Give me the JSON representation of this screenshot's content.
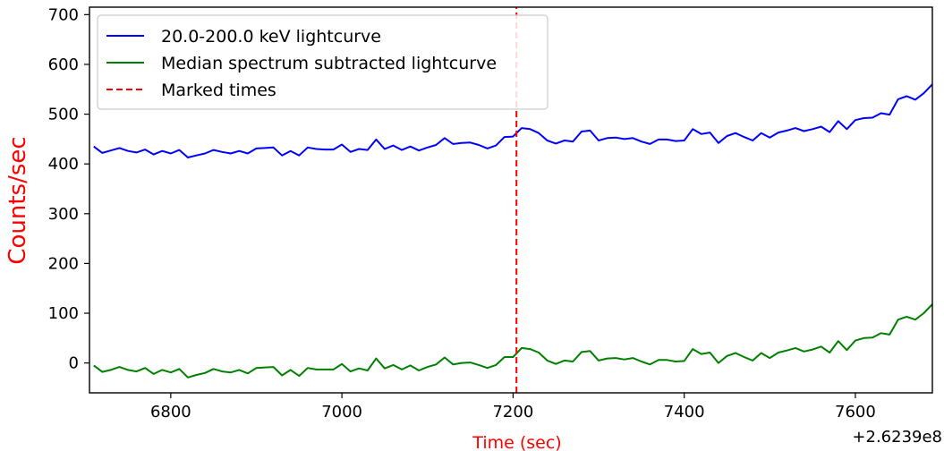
{
  "chart_data": {
    "type": "line",
    "title": "",
    "xlabel": "Time (sec)",
    "ylabel": "Counts/sec",
    "x_offset_label": "+2.6239e8",
    "xlim": [
      6705,
      7690
    ],
    "ylim": [
      -60,
      715
    ],
    "x_ticks": [
      6800,
      7000,
      7200,
      7400,
      7600
    ],
    "y_ticks": [
      0,
      100,
      200,
      300,
      400,
      500,
      600,
      700
    ],
    "legend_position": "top-left",
    "grid": false,
    "colors": {
      "axis_title": "#ff0000",
      "marker": "#ff0000"
    },
    "series": [
      {
        "name": "20.0-200.0 keV lightcurve",
        "color": "#0000ff",
        "style": "solid",
        "x": [
          6710,
          6720,
          6730,
          6740,
          6750,
          6760,
          6770,
          6780,
          6790,
          6800,
          6810,
          6820,
          6830,
          6840,
          6850,
          6860,
          6870,
          6880,
          6890,
          6900,
          6910,
          6920,
          6930,
          6940,
          6950,
          6960,
          6970,
          6980,
          6990,
          7000,
          7010,
          7020,
          7030,
          7040,
          7050,
          7060,
          7070,
          7080,
          7090,
          7100,
          7110,
          7120,
          7130,
          7140,
          7150,
          7160,
          7170,
          7180,
          7190,
          7200,
          7210,
          7220,
          7230,
          7240,
          7250,
          7260,
          7270,
          7280,
          7290,
          7300,
          7310,
          7320,
          7330,
          7340,
          7350,
          7360,
          7370,
          7380,
          7390,
          7400,
          7410,
          7420,
          7430,
          7440,
          7450,
          7460,
          7470,
          7480,
          7490,
          7500,
          7510,
          7520,
          7530,
          7540,
          7550,
          7560,
          7570,
          7580,
          7590,
          7600,
          7610,
          7620,
          7630,
          7640,
          7650,
          7660,
          7670,
          7680,
          7690
        ],
        "y": [
          435,
          422,
          427,
          432,
          426,
          423,
          429,
          419,
          426,
          421,
          428,
          413,
          417,
          421,
          428,
          424,
          421,
          426,
          421,
          431,
          432,
          433,
          417,
          426,
          417,
          433,
          430,
          429,
          429,
          439,
          424,
          430,
          428,
          449,
          430,
          437,
          428,
          435,
          427,
          433,
          438,
          452,
          440,
          442,
          443,
          438,
          431,
          437,
          454,
          455,
          472,
          470,
          462,
          447,
          441,
          447,
          445,
          465,
          467,
          447,
          452,
          453,
          450,
          452,
          445,
          440,
          449,
          449,
          446,
          447,
          470,
          460,
          463,
          442,
          456,
          462,
          454,
          447,
          462,
          453,
          463,
          467,
          472,
          466,
          470,
          475,
          464,
          486,
          470,
          488,
          492,
          493,
          502,
          499,
          530,
          536,
          529,
          542,
          560
        ]
      },
      {
        "name": "Median spectrum subtracted lightcurve",
        "color": "#008000",
        "style": "solid",
        "x": [
          6710,
          6720,
          6730,
          6740,
          6750,
          6760,
          6770,
          6780,
          6790,
          6800,
          6810,
          6820,
          6830,
          6840,
          6850,
          6860,
          6870,
          6880,
          6890,
          6900,
          6910,
          6920,
          6930,
          6940,
          6950,
          6960,
          6970,
          6980,
          6990,
          7000,
          7010,
          7020,
          7030,
          7040,
          7050,
          7060,
          7070,
          7080,
          7090,
          7100,
          7110,
          7120,
          7130,
          7140,
          7150,
          7160,
          7170,
          7180,
          7190,
          7200,
          7210,
          7220,
          7230,
          7240,
          7250,
          7260,
          7270,
          7280,
          7290,
          7300,
          7310,
          7320,
          7330,
          7340,
          7350,
          7360,
          7370,
          7380,
          7390,
          7400,
          7410,
          7420,
          7430,
          7440,
          7450,
          7460,
          7470,
          7480,
          7490,
          7500,
          7510,
          7520,
          7530,
          7540,
          7550,
          7560,
          7570,
          7580,
          7590,
          7600,
          7610,
          7620,
          7630,
          7640,
          7650,
          7660,
          7670,
          7680,
          7690
        ],
        "y": [
          -5,
          -18,
          -14,
          -8,
          -14,
          -17,
          -10,
          -22,
          -14,
          -19,
          -12,
          -29,
          -24,
          -20,
          -12,
          -17,
          -19,
          -14,
          -21,
          -10,
          -9,
          -8,
          -25,
          -14,
          -26,
          -10,
          -13,
          -13,
          -13,
          -2,
          -17,
          -11,
          -15,
          9,
          -11,
          -4,
          -13,
          -5,
          -15,
          -8,
          -3,
          11,
          -3,
          0,
          1,
          -4,
          -10,
          -4,
          12,
          12,
          30,
          28,
          21,
          5,
          -2,
          5,
          3,
          22,
          24,
          5,
          9,
          10,
          7,
          10,
          3,
          -3,
          6,
          6,
          3,
          4,
          28,
          18,
          21,
          0,
          14,
          20,
          12,
          5,
          20,
          10,
          21,
          25,
          30,
          23,
          27,
          33,
          21,
          44,
          26,
          45,
          50,
          51,
          60,
          57,
          87,
          93,
          87,
          100,
          118
        ]
      },
      {
        "name": "Marked times",
        "color": "#ff0000",
        "style": "dashed",
        "x": [
          7204,
          7204
        ],
        "y": [
          -60,
          715
        ]
      }
    ]
  }
}
